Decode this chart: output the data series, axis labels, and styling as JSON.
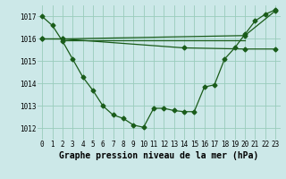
{
  "title": "Graphe pression niveau de la mer (hPa)",
  "background_color": "#cce8e8",
  "grid_color": "#99ccbb",
  "line_color": "#1a5c1a",
  "xlim": [
    -0.5,
    23.5
  ],
  "ylim": [
    1011.5,
    1017.5
  ],
  "yticks": [
    1012,
    1013,
    1014,
    1015,
    1016,
    1017
  ],
  "xticks": [
    0,
    1,
    2,
    3,
    4,
    5,
    6,
    7,
    8,
    9,
    10,
    11,
    12,
    13,
    14,
    15,
    16,
    17,
    18,
    19,
    20,
    21,
    22,
    23
  ],
  "line1_x": [
    0,
    1,
    2,
    3,
    4,
    5,
    6,
    7,
    8,
    9,
    10,
    11,
    12,
    13,
    14,
    15,
    16,
    17,
    18,
    19,
    20,
    21,
    22,
    23
  ],
  "line1_y": [
    1017.0,
    1016.6,
    1015.9,
    1015.1,
    1014.3,
    1013.7,
    1013.0,
    1012.6,
    1012.45,
    1012.15,
    1012.05,
    1012.9,
    1012.9,
    1012.8,
    1012.75,
    1012.75,
    1013.85,
    1013.95,
    1015.1,
    1015.6,
    1016.2,
    1016.8,
    1017.1,
    1017.3
  ],
  "line2_x": [
    0,
    2,
    20,
    23
  ],
  "line2_y": [
    1016.0,
    1016.0,
    1016.15,
    1017.25
  ],
  "line3_x": [
    0,
    2,
    14,
    20,
    23
  ],
  "line3_y": [
    1016.0,
    1016.0,
    1015.6,
    1015.55,
    1015.55
  ],
  "line4_x": [
    2,
    20
  ],
  "line4_y": [
    1015.95,
    1015.95
  ],
  "tick_fontsize": 5.5,
  "xlabel_fontsize": 7
}
